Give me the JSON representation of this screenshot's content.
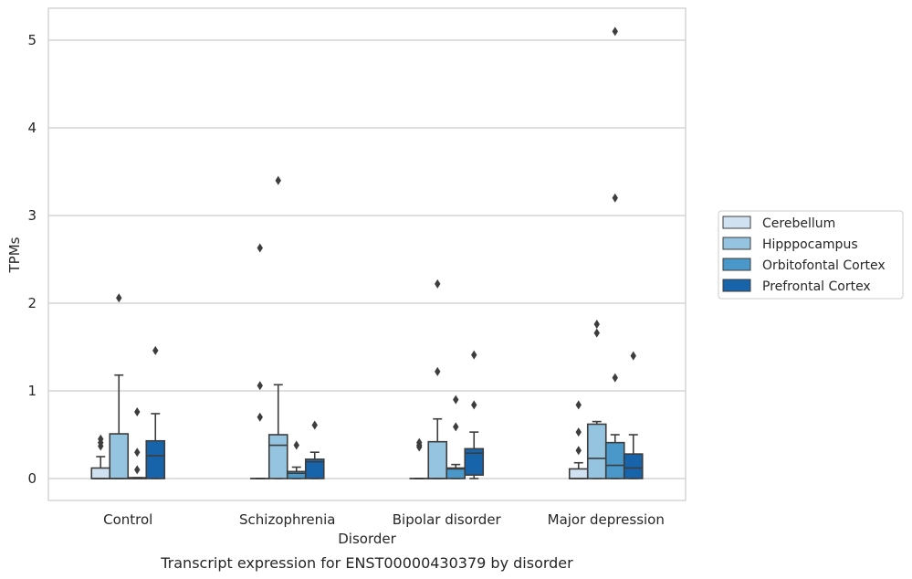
{
  "chart_data": {
    "type": "box",
    "caption": "Transcript expression for ENST00000430379 by disorder",
    "xlabel": "Disorder",
    "ylabel": "TPMs",
    "ylim": [
      -0.25,
      5.35
    ],
    "yticks": [
      0,
      1,
      2,
      3,
      4,
      5
    ],
    "grid": "horizontal",
    "legend_position": "right",
    "categories": [
      "Control",
      "Schizophrenia",
      "Bipolar disorder",
      "Major depression"
    ],
    "series": [
      {
        "name": "Cerebellum",
        "color": "#d0e1f2",
        "boxes": [
          {
            "whislo": 0,
            "q1": 0,
            "med": 0,
            "q3": 0.12,
            "whishi": 0.25,
            "fliers": [
              0.37,
              0.41,
              0.45
            ]
          },
          {
            "whislo": 0,
            "q1": 0,
            "med": 0,
            "q3": 0,
            "whishi": 0,
            "fliers": [
              0.7,
              1.06,
              2.63
            ]
          },
          {
            "whislo": 0,
            "q1": 0,
            "med": 0,
            "q3": 0,
            "whishi": 0,
            "fliers": [
              0.36,
              0.38,
              0.41
            ]
          },
          {
            "whislo": 0,
            "q1": 0,
            "med": 0,
            "q3": 0.11,
            "whishi": 0.18,
            "fliers": [
              0.32,
              0.53,
              0.84
            ]
          }
        ]
      },
      {
        "name": "Hipppocampus",
        "color": "#94c4df",
        "boxes": [
          {
            "whislo": 0,
            "q1": 0,
            "med": 0,
            "q3": 0.51,
            "whishi": 1.18,
            "fliers": [
              2.06
            ]
          },
          {
            "whislo": 0,
            "q1": 0,
            "med": 0.38,
            "q3": 0.5,
            "whishi": 1.07,
            "fliers": [
              3.4
            ]
          },
          {
            "whislo": 0,
            "q1": 0,
            "med": 0,
            "q3": 0.42,
            "whishi": 0.68,
            "fliers": [
              1.22,
              2.22
            ]
          },
          {
            "whislo": 0,
            "q1": 0,
            "med": 0.23,
            "q3": 0.62,
            "whishi": 0.65,
            "fliers": [
              1.66,
              1.76
            ]
          }
        ]
      },
      {
        "name": "Orbitofontal Cortex",
        "color": "#4a98c9",
        "boxes": [
          {
            "whislo": 0,
            "q1": 0,
            "med": 0,
            "q3": 0.01,
            "whishi": 0.01,
            "fliers": [
              0.1,
              0.3,
              0.76
            ]
          },
          {
            "whislo": 0,
            "q1": 0,
            "med": 0.06,
            "q3": 0.08,
            "whishi": 0.13,
            "fliers": [
              0.38
            ]
          },
          {
            "whislo": 0,
            "q1": 0,
            "med": 0.11,
            "q3": 0.12,
            "whishi": 0.16,
            "fliers": [
              0.59,
              0.9
            ]
          },
          {
            "whislo": 0,
            "q1": 0,
            "med": 0.15,
            "q3": 0.41,
            "whishi": 0.5,
            "fliers": [
              1.15,
              3.2,
              5.1
            ]
          }
        ]
      },
      {
        "name": "Prefrontal Cortex",
        "color": "#1764ab",
        "boxes": [
          {
            "whislo": 0,
            "q1": 0,
            "med": 0.26,
            "q3": 0.43,
            "whishi": 0.74,
            "fliers": [
              1.46
            ]
          },
          {
            "whislo": 0,
            "q1": 0,
            "med": 0.19,
            "q3": 0.22,
            "whishi": 0.3,
            "fliers": [
              0.61
            ]
          },
          {
            "whislo": 0,
            "q1": 0.04,
            "med": 0.29,
            "q3": 0.34,
            "whishi": 0.53,
            "fliers": [
              0.84,
              1.41
            ]
          },
          {
            "whislo": 0,
            "q1": 0,
            "med": 0.12,
            "q3": 0.28,
            "whishi": 0.5,
            "fliers": [
              1.4
            ]
          }
        ]
      }
    ]
  }
}
